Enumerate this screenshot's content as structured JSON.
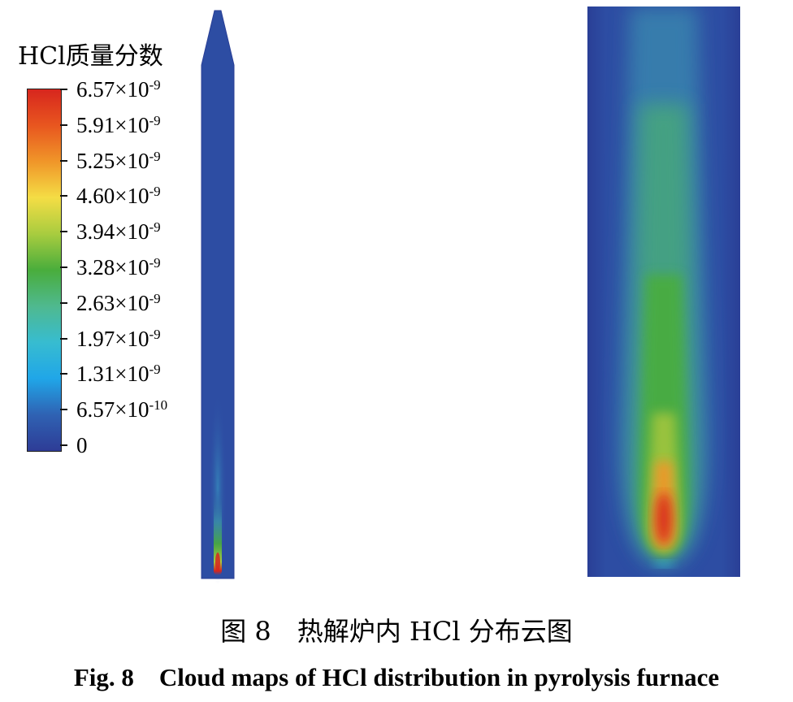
{
  "legend": {
    "title": "HCl质量分数",
    "ticks": [
      {
        "mantissa": "6.57×10",
        "exponent": "-9"
      },
      {
        "mantissa": "5.91×10",
        "exponent": "-9"
      },
      {
        "mantissa": "5.25×10",
        "exponent": "-9"
      },
      {
        "mantissa": "4.60×10",
        "exponent": "-9"
      },
      {
        "mantissa": "3.94×10",
        "exponent": "-9"
      },
      {
        "mantissa": "3.28×10",
        "exponent": "-9"
      },
      {
        "mantissa": "2.63×10",
        "exponent": "-9"
      },
      {
        "mantissa": "1.97×10",
        "exponent": "-9"
      },
      {
        "mantissa": "1.31×10",
        "exponent": "-9"
      },
      {
        "mantissa": "6.57×10",
        "exponent": "-10"
      },
      {
        "mantissa": "0",
        "exponent": ""
      }
    ],
    "colors": [
      "#d7261e",
      "#e8561f",
      "#f09629",
      "#f4dd45",
      "#a8cc3f",
      "#49ad3c",
      "#4fb98f",
      "#37bcd0",
      "#20a6e8",
      "#2f62b3",
      "#2e3c96"
    ]
  },
  "captions": {
    "chinese": "图 8　热解炉内 HCl 分布云图",
    "english": "Fig. 8　Cloud maps of HCl distribution in pyrolysis furnace"
  },
  "colors": {
    "background_blue": "#2d4da3",
    "edge_blue": "#2a3f96"
  }
}
